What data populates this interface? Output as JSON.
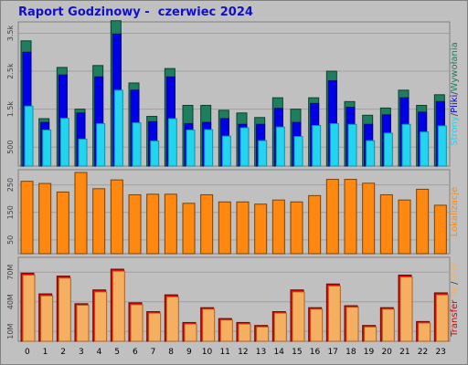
{
  "title": "Raport Godzinowy -  czerwiec 2024",
  "colors": {
    "background": "#c0c0c0",
    "panel": "#c0c0c0",
    "grid": "#a0a0a0",
    "visits": "#1e7e5e",
    "files": "#0000e8",
    "pages": "#22d4f0",
    "locations": "#ff8810",
    "transfer_out": "#dd0000",
    "transfer_in": "#f4b060",
    "title": "#1010c8"
  },
  "chart_data": [
    {
      "type": "bar",
      "panel": "top",
      "categories": [
        "0",
        "1",
        "2",
        "3",
        "4",
        "5",
        "6",
        "7",
        "8",
        "9",
        "10",
        "11",
        "12",
        "13",
        "14",
        "15",
        "16",
        "17",
        "18",
        "19",
        "20",
        "21",
        "22",
        "23"
      ],
      "ylim": [
        0,
        3800
      ],
      "ytick_labels": [
        "500",
        "1.5k",
        "2.5k",
        "3.5k"
      ],
      "ytick_values": [
        500,
        1500,
        2500,
        3500
      ],
      "grid": true,
      "legend_label_parts": [
        {
          "text": "Strony",
          "color": "#22d4f0"
        },
        {
          "text": "/",
          "color": "#404040"
        },
        {
          "text": "Pliki",
          "color": "#0000e8"
        },
        {
          "text": "/",
          "color": "#404040"
        },
        {
          "text": "Wywołania",
          "color": "#1e7e5e"
        }
      ],
      "series": [
        {
          "name": "Wywołania",
          "values": [
            3300,
            1250,
            2600,
            1500,
            2650,
            3830,
            2190,
            1310,
            2570,
            1600,
            1600,
            1470,
            1400,
            1280,
            1800,
            1500,
            1800,
            2500,
            1700,
            1340,
            1530,
            2000,
            1600,
            1880
          ]
        },
        {
          "name": "Pliki",
          "values": [
            3000,
            1150,
            2400,
            1400,
            2350,
            3480,
            2000,
            1170,
            2350,
            1120,
            1150,
            1250,
            1100,
            1100,
            1520,
            1150,
            1650,
            2250,
            1550,
            1100,
            1350,
            1800,
            1420,
            1700
          ]
        },
        {
          "name": "Strony",
          "values": [
            1580,
            950,
            1260,
            710,
            1120,
            2000,
            1140,
            660,
            1250,
            950,
            960,
            790,
            1010,
            670,
            1030,
            780,
            1070,
            1120,
            1100,
            670,
            870,
            1100,
            900,
            1060
          ]
        }
      ]
    },
    {
      "type": "bar",
      "panel": "middle",
      "categories": [
        "0",
        "1",
        "2",
        "3",
        "4",
        "5",
        "6",
        "7",
        "8",
        "9",
        "10",
        "11",
        "12",
        "13",
        "14",
        "15",
        "16",
        "17",
        "18",
        "19",
        "20",
        "21",
        "22",
        "23"
      ],
      "ylim": [
        0,
        305
      ],
      "ytick_labels": [
        "50",
        "150",
        "250"
      ],
      "ytick_values": [
        50,
        150,
        250
      ],
      "grid": true,
      "legend_label_parts": [
        {
          "text": "Lokalizacje",
          "color": "#ff8810"
        }
      ],
      "series": [
        {
          "name": "Lokalizacje",
          "values": [
            263,
            255,
            224,
            295,
            236,
            268,
            214,
            216,
            216,
            183,
            214,
            188,
            188,
            180,
            195,
            188,
            211,
            270,
            270,
            256,
            214,
            195,
            234,
            176
          ]
        }
      ]
    },
    {
      "type": "bar",
      "panel": "bottom",
      "categories": [
        "0",
        "1",
        "2",
        "3",
        "4",
        "5",
        "6",
        "7",
        "8",
        "9",
        "10",
        "11",
        "12",
        "13",
        "14",
        "15",
        "16",
        "17",
        "18",
        "19",
        "20",
        "21",
        "22",
        "23"
      ],
      "ylim": [
        0,
        85
      ],
      "ytick_labels": [
        "10M",
        "40M",
        "70M"
      ],
      "ytick_values": [
        10,
        40,
        70
      ],
      "grid": true,
      "legend_label_parts": [
        {
          "text": "Transfer",
          "color": "#dd0000"
        },
        {
          "text": " IN ",
          "color": "#f4b060"
        },
        {
          "text": "/",
          "color": "#404040"
        },
        {
          "text": "OUT",
          "color": "#f4b060"
        }
      ],
      "series": [
        {
          "name": "Transfer OUT",
          "values": [
            69.0,
            48.0,
            66.0,
            38.0,
            52.0,
            73.0,
            39.0,
            30.0,
            47.0,
            19.0,
            34.0,
            23.0,
            19.0,
            16.0,
            30.0,
            52.0,
            34.0,
            58.0,
            36.0,
            16.0,
            34.0,
            67.0,
            20.0,
            49.0
          ]
        },
        {
          "name": "Transfer IN",
          "values": [
            67.0,
            46.0,
            64.0,
            36.5,
            50.0,
            71.0,
            37.0,
            28.5,
            45.0,
            17.5,
            32.5,
            21.5,
            17.5,
            14.5,
            28.5,
            50.0,
            32.5,
            56.0,
            34.5,
            14.5,
            32.5,
            65.0,
            18.5,
            47.0
          ]
        }
      ]
    }
  ]
}
